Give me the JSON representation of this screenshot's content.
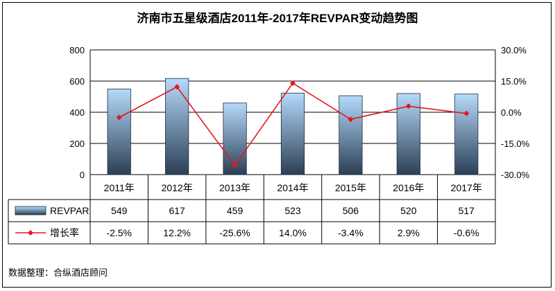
{
  "chart_data": {
    "type": "bar",
    "title": "济南市五星级酒店2011年-2017年REVPAR变动趋势图",
    "categories": [
      "2011年",
      "2012年",
      "2013年",
      "2014年",
      "2015年",
      "2016年",
      "2017年"
    ],
    "series": [
      {
        "name": "REVPAR",
        "type": "bar",
        "axis": "left",
        "values": [
          549,
          617,
          459,
          523,
          506,
          520,
          517
        ],
        "labels": [
          "549",
          "617",
          "459",
          "523",
          "506",
          "520",
          "517"
        ]
      },
      {
        "name": "增长率",
        "type": "line",
        "axis": "right",
        "values": [
          -2.5,
          12.2,
          -25.6,
          14.0,
          -3.4,
          2.9,
          -0.6
        ],
        "labels": [
          "-2.5%",
          "12.2%",
          "-25.6%",
          "14.0%",
          "-3.4%",
          "2.9%",
          "-0.6%"
        ]
      }
    ],
    "y_left": {
      "min": 0,
      "max": 800,
      "ticks": [
        "0",
        "200",
        "400",
        "600",
        "800"
      ]
    },
    "y_right": {
      "min": -30,
      "max": 30,
      "ticks": [
        "-30.0%",
        "-15.0%",
        "0.0%",
        "15.0%",
        "30.0%"
      ]
    },
    "grid": true,
    "legend": "data-table",
    "colors": {
      "bar_top": "#a9d1f5",
      "bar_bottom": "#2b3f55",
      "line": "#e8141e",
      "grid": "#000000"
    }
  },
  "footer": {
    "source": "数据整理：合纵酒店顾问"
  }
}
